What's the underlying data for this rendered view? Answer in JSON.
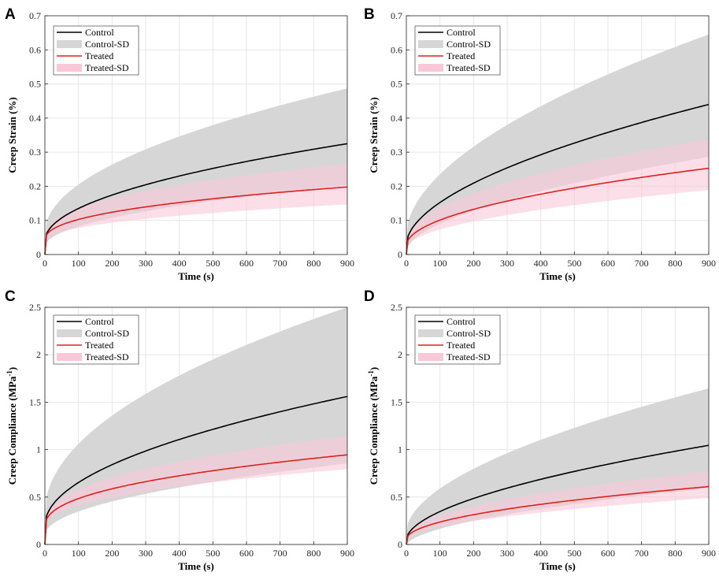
{
  "chart_data": [
    {
      "type": "line",
      "panel": "A",
      "xlabel": "Time (s)",
      "ylabel": "Creep Strain (%)",
      "xlim": [
        0,
        900
      ],
      "ylim": [
        0,
        0.7
      ],
      "xticks": [
        "0",
        "100",
        "200",
        "300",
        "400",
        "500",
        "600",
        "700",
        "800",
        "900"
      ],
      "yticks": [
        "0",
        "0.1",
        "0.2",
        "0.3",
        "0.4",
        "0.5",
        "0.6",
        "0.7"
      ],
      "legend": [
        "Control",
        "Control-SD",
        "Treated",
        "Treated-SD"
      ],
      "series": [
        {
          "name": "Control",
          "color": "#000000",
          "final": 0.325,
          "start": 0.04,
          "exponent": 0.5,
          "sd_final": 0.162
        },
        {
          "name": "Treated",
          "color": "#e0201b",
          "final": 0.198,
          "start": 0.04,
          "exponent": 0.42,
          "sd_final": 0.068
        }
      ]
    },
    {
      "type": "line",
      "panel": "B",
      "xlabel": "Time (s)",
      "ylabel": "Creep Strain (%)",
      "xlim": [
        0,
        900
      ],
      "ylim": [
        0,
        0.7
      ],
      "xticks": [
        "0",
        "100",
        "200",
        "300",
        "400",
        "500",
        "600",
        "700",
        "800",
        "900"
      ],
      "yticks": [
        "0",
        "0.1",
        "0.2",
        "0.3",
        "0.4",
        "0.5",
        "0.6",
        "0.7"
      ],
      "legend": [
        "Control",
        "Control-SD",
        "Treated",
        "Treated-SD"
      ],
      "series": [
        {
          "name": "Control",
          "color": "#000000",
          "final": 0.44,
          "start": 0.03,
          "exponent": 0.55,
          "sd_final": 0.205
        },
        {
          "name": "Treated",
          "color": "#e0201b",
          "final": 0.253,
          "start": 0.025,
          "exponent": 0.5,
          "sd_final": 0.085
        }
      ]
    },
    {
      "type": "line",
      "panel": "C",
      "xlabel": "Time (s)",
      "ylabel": "Creep Compliance (MPa",
      "ylabel_sup": "-1",
      "ylabel_end": ")",
      "xlim": [
        0,
        900
      ],
      "ylim": [
        0,
        2.5
      ],
      "xticks": [
        "0",
        "100",
        "200",
        "300",
        "400",
        "500",
        "600",
        "700",
        "800",
        "900"
      ],
      "yticks": [
        "0",
        "0.5",
        "1",
        "1.5",
        "2",
        "2.5"
      ],
      "legend": [
        "Control",
        "Control-SD",
        "Treated",
        "Treated-SD"
      ],
      "series": [
        {
          "name": "Control",
          "color": "#000000",
          "final": 1.56,
          "start": 0.2,
          "exponent": 0.5,
          "sd_final": 0.94
        },
        {
          "name": "Treated",
          "color": "#e0201b",
          "final": 0.945,
          "start": 0.18,
          "exponent": 0.42,
          "sd_final": 0.2
        }
      ]
    },
    {
      "type": "line",
      "panel": "D",
      "xlabel": "Time (s)",
      "ylabel": "Creep Compliance (MPa",
      "ylabel_sup": "-1",
      "ylabel_end": ")",
      "xlim": [
        0,
        900
      ],
      "ylim": [
        0,
        2.5
      ],
      "xticks": [
        "0",
        "100",
        "200",
        "300",
        "400",
        "500",
        "600",
        "700",
        "800",
        "900"
      ],
      "yticks": [
        "0",
        "0.5",
        "1",
        "1.5",
        "2",
        "2.5"
      ],
      "legend": [
        "Control",
        "Control-SD",
        "Treated",
        "Treated-SD"
      ],
      "series": [
        {
          "name": "Control",
          "color": "#000000",
          "final": 1.045,
          "start": 0.05,
          "exponent": 0.55,
          "sd_final": 0.6
        },
        {
          "name": "Treated",
          "color": "#e0201b",
          "final": 0.61,
          "start": 0.05,
          "exponent": 0.5,
          "sd_final": 0.16
        }
      ]
    }
  ],
  "colors": {
    "control_sd": "#d6d6d6",
    "treated_sd": "#f8c8d8"
  }
}
